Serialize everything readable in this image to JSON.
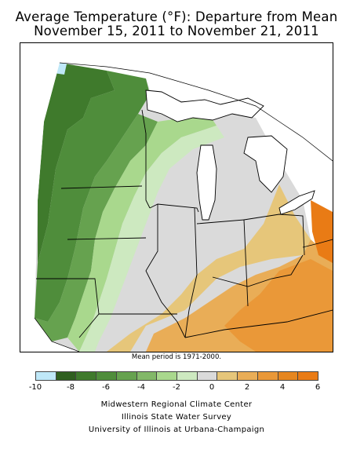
{
  "title_line1": "Average Temperature (°F): Departure from Mean",
  "title_line2": "November 15, 2011 to November 21, 2011",
  "mean_period_note": "Mean period is 1971-2000.",
  "legend": {
    "colors": [
      "#bfe8f8",
      "#2f5f1f",
      "#3f7a2c",
      "#4f8d3b",
      "#66a24f",
      "#82b868",
      "#a9d88d",
      "#cde9c0",
      "#dadada",
      "#e6c67a",
      "#e9ad57",
      "#ea9838",
      "#e6861f",
      "#e97b15"
    ],
    "ticks": [
      "-10",
      "-8",
      "-6",
      "-4",
      "-2",
      "0",
      "2",
      "4",
      "6"
    ]
  },
  "credits": {
    "line1": "Midwestern Regional Climate Center",
    "line2": "Illinois State Water Survey",
    "line3": "University of Illinois at Urbana-Champaign"
  },
  "colors": {
    "water": "#ffffff",
    "outline": "#000000"
  }
}
